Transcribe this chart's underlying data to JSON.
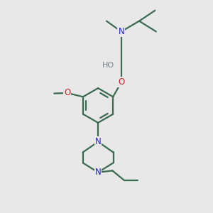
{
  "bg_color": "#e8e8e8",
  "bond_color": "#3a6b50",
  "nitrogen_color": "#2222cc",
  "oxygen_color": "#cc2222",
  "hydrogen_color": "#708090",
  "line_width": 1.6,
  "fig_size": [
    3.0,
    3.0
  ],
  "dpi": 100,
  "xlim": [
    0,
    10
  ],
  "ylim": [
    0,
    10
  ]
}
